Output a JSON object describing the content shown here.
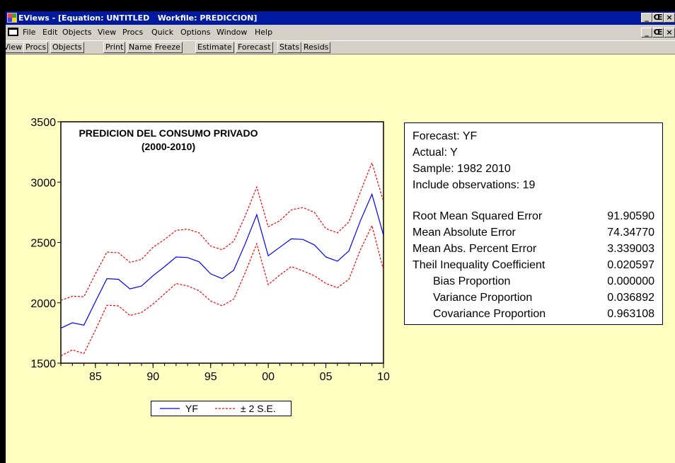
{
  "window": {
    "title": "EViews - [Equation: UNTITLED   Workfile: PREDICCION]",
    "title_controls": [
      "_",
      "Œ",
      "×"
    ],
    "doc_controls": [
      "_",
      "Œ",
      "×"
    ]
  },
  "menu": {
    "items": [
      "File",
      "Edit",
      "Objects",
      "View",
      "Procs",
      "Quick",
      "Options",
      "Window",
      "Help"
    ]
  },
  "toolbar": {
    "buttons": [
      "View",
      "Procs",
      "Objects",
      "Print",
      "Name",
      "Freeze",
      "Estimate",
      "Forecast",
      "Stats",
      "Resids"
    ]
  },
  "colors": {
    "background": "#ffffc1",
    "forecast_line": "#0000ff",
    "band_line": "#ff0000",
    "title_bar": "#001a9f"
  },
  "chart_data": {
    "type": "line",
    "title": "PREDICION DEL CONSUMO PRIVADO",
    "subtitle": "(2000-2010)",
    "x": [
      1982,
      1983,
      1984,
      1985,
      1986,
      1987,
      1988,
      1989,
      1990,
      1991,
      1992,
      1993,
      1994,
      1995,
      1996,
      1997,
      1998,
      1999,
      2000,
      2001,
      2002,
      2003,
      2004,
      2005,
      2006,
      2007,
      2008,
      2009,
      2010
    ],
    "x_tick_labels": [
      "85",
      "90",
      "95",
      "00",
      "05",
      "10"
    ],
    "y_tick_labels": [
      "1500",
      "2000",
      "2500",
      "3000",
      "3500"
    ],
    "ylim": [
      1500,
      3500
    ],
    "xlim": [
      1982,
      2010
    ],
    "series": [
      {
        "name": "YF",
        "style": "solid",
        "values": [
          1790,
          1835,
          1815,
          2010,
          2200,
          2195,
          2115,
          2140,
          2225,
          2300,
          2380,
          2375,
          2340,
          2240,
          2200,
          2270,
          2490,
          2730,
          2390,
          2460,
          2530,
          2525,
          2480,
          2380,
          2345,
          2430,
          2680,
          2900,
          2560
        ]
      },
      {
        "name": "± 2 S.E.",
        "style": "dashed",
        "values": [
          2020,
          2055,
          2050,
          2240,
          2420,
          2415,
          2335,
          2360,
          2460,
          2525,
          2600,
          2610,
          2580,
          2470,
          2440,
          2510,
          2720,
          2960,
          2630,
          2680,
          2770,
          2790,
          2750,
          2615,
          2580,
          2670,
          2920,
          3160,
          2840
        ]
      },
      {
        "name": "",
        "style": "dashed",
        "values": [
          1560,
          1610,
          1580,
          1775,
          1980,
          1975,
          1895,
          1920,
          1990,
          2075,
          2160,
          2140,
          2100,
          2015,
          1975,
          2030,
          2250,
          2490,
          2150,
          2230,
          2300,
          2265,
          2225,
          2160,
          2125,
          2195,
          2440,
          2640,
          2270
        ]
      }
    ],
    "legend": {
      "placement": "bottom-center",
      "entries": [
        "YF",
        "± 2 S.E."
      ]
    }
  },
  "forecast_stats": {
    "header": [
      "Forecast: YF",
      "Actual: Y",
      "Sample: 1982 2010",
      "Include observations: 19"
    ],
    "rows": [
      {
        "label": "Root Mean Squared Error",
        "value": "91.90590"
      },
      {
        "label": "Mean Absolute Error",
        "value": "74.34770"
      },
      {
        "label": "Mean Abs. Percent Error",
        "value": "3.339003"
      },
      {
        "label": "Theil Inequality Coefficient",
        "value": "0.020597"
      },
      {
        "label": "Bias Proportion",
        "value": "0.000000"
      },
      {
        "label": "Variance Proportion",
        "value": "0.036892"
      },
      {
        "label": "Covariance Proportion",
        "value": "0.963108"
      }
    ]
  }
}
